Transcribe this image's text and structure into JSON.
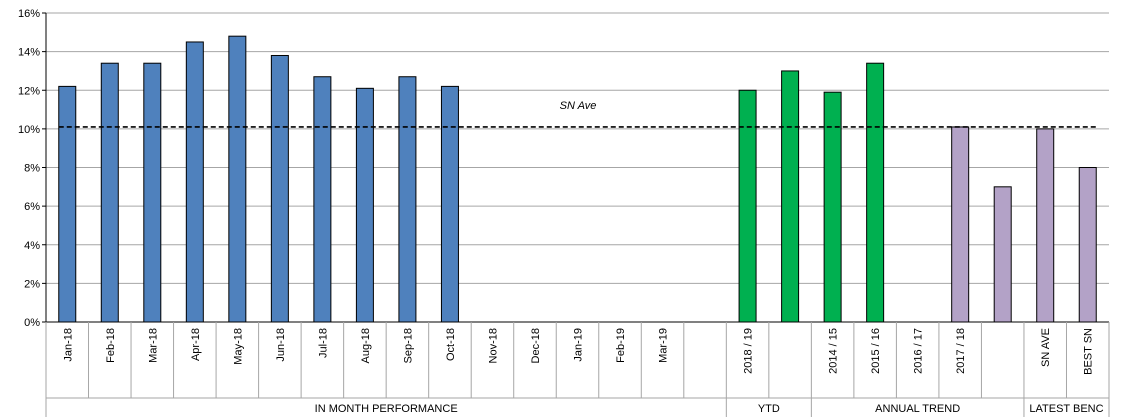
{
  "chart_data": {
    "type": "bar",
    "title": "",
    "xlabel": "",
    "ylabel": "",
    "ylim": [
      0,
      16
    ],
    "y_ticks": [
      "0%",
      "2%",
      "4%",
      "6%",
      "8%",
      "10%",
      "12%",
      "14%",
      "16%"
    ],
    "grid": true,
    "categories": [
      "Jan-18",
      "Feb-18",
      "Mar-18",
      "Apr-18",
      "May-18",
      "Jun-18",
      "Jul-18",
      "Aug-18",
      "Sep-18",
      "Oct-18",
      "Nov-18",
      "Dec-18",
      "Jan-19",
      "Feb-19",
      "Mar-19",
      "",
      "2018 / 19",
      "",
      "2014 / 15",
      "2015 / 16",
      "2016 / 17",
      "2017 / 18",
      "",
      "SN AVE",
      "BEST SN"
    ],
    "values": [
      12.2,
      13.4,
      13.4,
      14.5,
      14.8,
      13.8,
      12.7,
      12.1,
      12.7,
      12.2,
      null,
      null,
      null,
      null,
      null,
      null,
      12.0,
      13.0,
      11.9,
      13.4,
      null,
      10.1,
      7.0,
      10.0,
      8.0
    ],
    "bar_colors": [
      "#4f81bd",
      "#4f81bd",
      "#4f81bd",
      "#4f81bd",
      "#4f81bd",
      "#4f81bd",
      "#4f81bd",
      "#4f81bd",
      "#4f81bd",
      "#4f81bd",
      "#4f81bd",
      "#4f81bd",
      "#4f81bd",
      "#4f81bd",
      "#4f81bd",
      "#ffffff",
      "#00b050",
      "#00b050",
      "#00b050",
      "#00b050",
      "#00b050",
      "#b3a2c7",
      "#b3a2c7",
      "#b3a2c7",
      "#b3a2c7"
    ],
    "groups": [
      {
        "label": "IN MONTH PERFORMANCE",
        "start": 0,
        "end": 15
      },
      {
        "label": "YTD",
        "start": 16,
        "end": 17
      },
      {
        "label": "ANNUAL TREND",
        "start": 18,
        "end": 22
      },
      {
        "label": "LATEST BENC",
        "start": 23,
        "end": 24
      }
    ],
    "reference_line": {
      "label": "SN Ave",
      "value": 10.1,
      "style": "dashed"
    }
  }
}
